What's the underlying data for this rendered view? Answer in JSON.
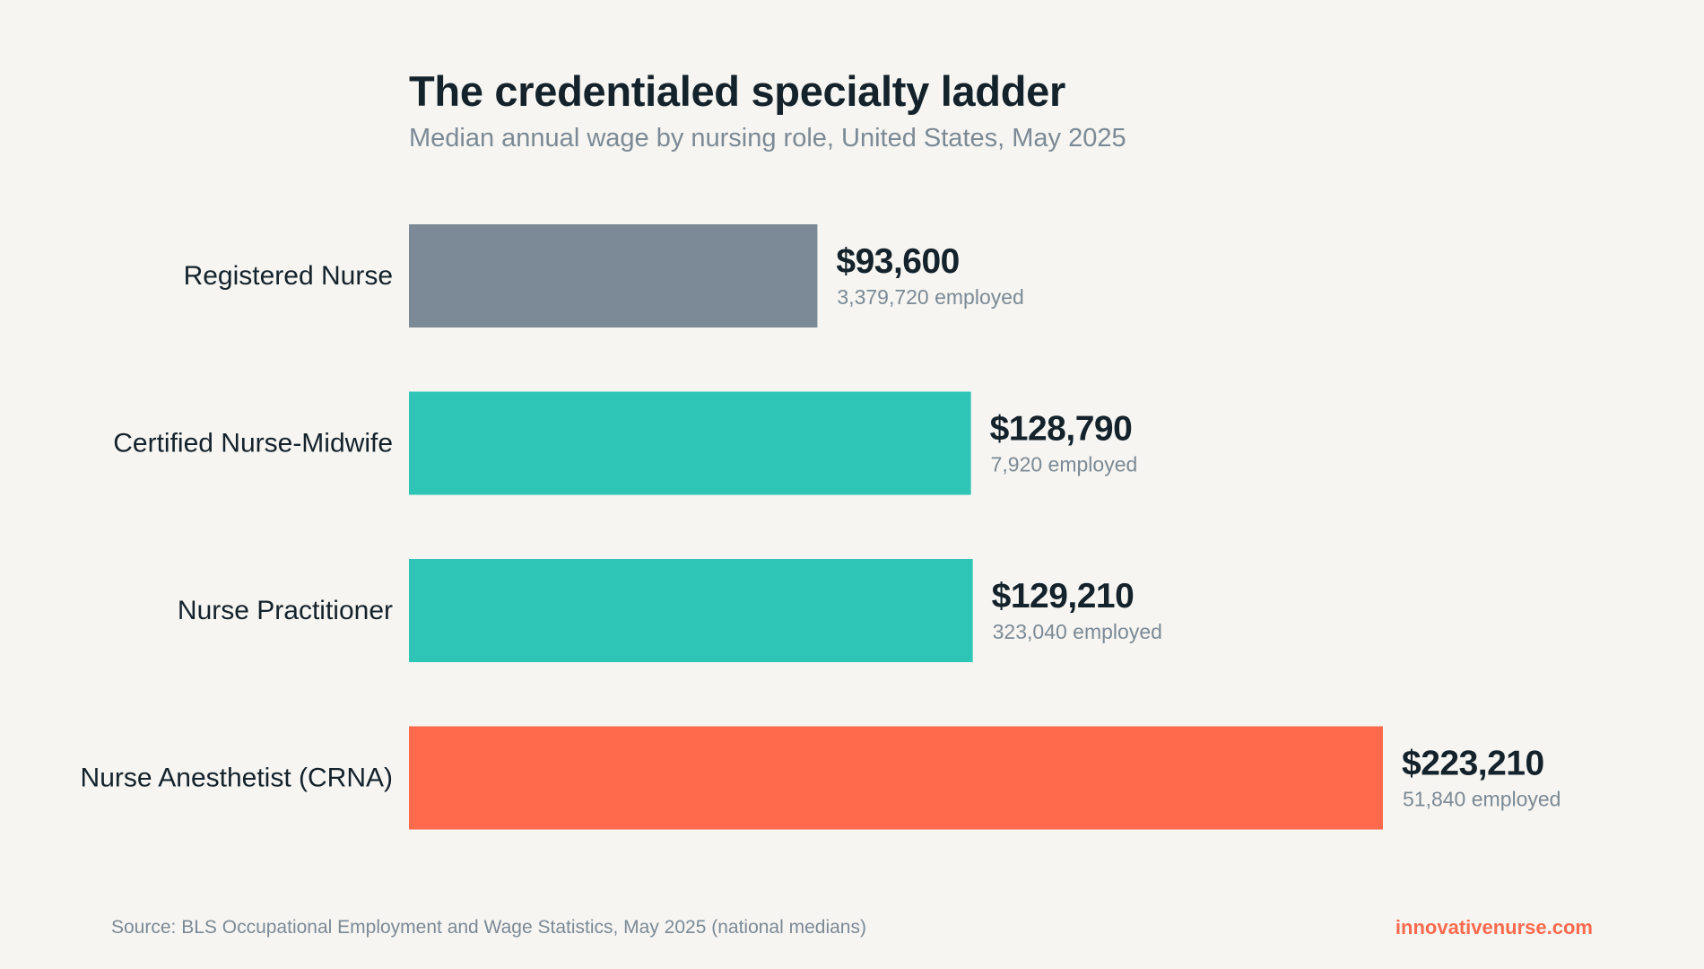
{
  "title": "The credentialed specialty ladder",
  "subtitle": "Median annual wage by nursing role, United States, May 2025",
  "source": "Source: BLS Occupational Employment and Wage Statistics, May 2025 (national medians)",
  "brand": "innovativenurse.com",
  "colors": {
    "background": "#f6f5f1",
    "baseline": "#7b8a96",
    "specialty": "#2ec5b6",
    "top": "#ff6a4d",
    "text_dark": "#14222c",
    "text_muted": "#7b8a96"
  },
  "chart_data": {
    "type": "bar",
    "orientation": "horizontal",
    "title": "The credentialed specialty ladder",
    "subtitle": "Median annual wage by nursing role, United States, May 2025",
    "xlabel": "",
    "ylabel": "",
    "xlim": [
      0,
      223210
    ],
    "grid": false,
    "legend": "none",
    "categories": [
      "Registered Nurse",
      "Certified Nurse-Midwife",
      "Nurse Practitioner",
      "Nurse Anesthetist (CRNA)"
    ],
    "values": [
      93600,
      128790,
      129210,
      223210
    ],
    "value_labels": [
      "$93,600",
      "$128,790",
      "$129,210",
      "$223,210"
    ],
    "employment_labels": [
      "3,379,720 employed",
      "7,920 employed",
      "323,040 employed",
      "51,840 employed"
    ],
    "bar_colors": [
      "#7b8a96",
      "#2ec5b6",
      "#2ec5b6",
      "#ff6a4d"
    ]
  }
}
